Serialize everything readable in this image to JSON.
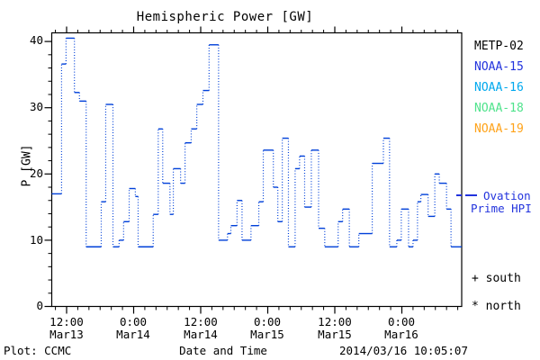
{
  "title": "Hemispheric Power [GW]",
  "colors": {
    "frame": "#000000",
    "hpi_line": "#0040d9",
    "ovation_label": "#2233dd"
  },
  "axes": {
    "y": {
      "label": "P [GW]",
      "tick_labels": [
        "40",
        "30",
        "20",
        "10",
        "0"
      ],
      "tick_values": [
        40,
        30,
        20,
        10,
        0
      ],
      "minor_step": 2,
      "range": [
        0,
        41.3
      ]
    },
    "x": {
      "label": "Date and Time",
      "ticks": [
        {
          "time": "12:00",
          "date": "Mar13",
          "hour": 12
        },
        {
          "time": "0:00",
          "date": "Mar14",
          "hour": 24
        },
        {
          "time": "12:00",
          "date": "Mar14",
          "hour": 36
        },
        {
          "time": "0:00",
          "date": "Mar15",
          "hour": 48
        },
        {
          "time": "12:00",
          "date": "Mar15",
          "hour": 60
        },
        {
          "time": "0:00",
          "date": "Mar16",
          "hour": 72
        }
      ],
      "minor_step_hours": 2,
      "range_hours": [
        9.26,
        82.7
      ]
    }
  },
  "legend": {
    "satellites": [
      {
        "label": "METP-02",
        "color": "#000000"
      },
      {
        "label": "NOAA-15",
        "color": "#2233dd"
      },
      {
        "label": "NOAA-16",
        "color": "#00a8ee"
      },
      {
        "label": "NOAA-18",
        "color": "#4fe38c"
      },
      {
        "label": "NOAA-19",
        "color": "#ffa31a"
      }
    ],
    "ovation_line1": "Ovation",
    "ovation_line2": "Prime HPI",
    "south": "+ south",
    "north": "* north"
  },
  "footer": {
    "left": "Plot: CCMC",
    "right": "2014/03/16 10:05:07"
  },
  "chart_data": {
    "type": "line",
    "title": "Hemispheric Power [GW]",
    "xlabel": "Date and Time",
    "ylabel": "P [GW]",
    "ylim": [
      0,
      41.3
    ],
    "x_unit": "hours since 2014-03-13 00:00 UT",
    "xlim_hours": [
      9.26,
      82.7
    ],
    "grid": false,
    "legend_position": "right-outside",
    "series": [
      {
        "name": "Ovation Prime HPI",
        "color": "#0040d9",
        "style": "stepped; horizontal segments solid, vertical connectors dotted",
        "end_hour": 82.7,
        "steps_hour_value": [
          [
            9.3,
            17.0
          ],
          [
            11.1,
            36.6
          ],
          [
            11.9,
            40.5
          ],
          [
            13.4,
            32.3
          ],
          [
            14.3,
            31.0
          ],
          [
            15.5,
            9.0
          ],
          [
            18.2,
            15.8
          ],
          [
            19.0,
            30.5
          ],
          [
            20.3,
            9.0
          ],
          [
            21.4,
            10.0
          ],
          [
            22.2,
            12.8
          ],
          [
            23.2,
            17.8
          ],
          [
            24.3,
            16.6
          ],
          [
            24.8,
            9.0
          ],
          [
            27.5,
            13.9
          ],
          [
            28.4,
            26.8
          ],
          [
            29.2,
            18.6
          ],
          [
            30.5,
            13.9
          ],
          [
            31.1,
            20.8
          ],
          [
            32.4,
            18.6
          ],
          [
            33.2,
            24.7
          ],
          [
            34.3,
            26.8
          ],
          [
            35.3,
            30.5
          ],
          [
            36.4,
            32.6
          ],
          [
            37.5,
            39.5
          ],
          [
            39.2,
            10.0
          ],
          [
            40.8,
            11.0
          ],
          [
            41.4,
            12.2
          ],
          [
            42.5,
            16.0
          ],
          [
            43.4,
            10.0
          ],
          [
            45.0,
            12.2
          ],
          [
            46.4,
            15.8
          ],
          [
            47.2,
            23.6
          ],
          [
            49.0,
            18.0
          ],
          [
            49.8,
            12.8
          ],
          [
            50.6,
            25.4
          ],
          [
            51.7,
            9.0
          ],
          [
            52.9,
            20.8
          ],
          [
            53.7,
            22.7
          ],
          [
            54.6,
            15.0
          ],
          [
            55.8,
            23.6
          ],
          [
            57.1,
            11.8
          ],
          [
            58.2,
            9.0
          ],
          [
            60.6,
            12.8
          ],
          [
            61.4,
            14.7
          ],
          [
            62.6,
            9.0
          ],
          [
            64.3,
            11.0
          ],
          [
            66.7,
            21.6
          ],
          [
            68.7,
            25.4
          ],
          [
            69.8,
            9.0
          ],
          [
            71.1,
            10.0
          ],
          [
            71.9,
            14.7
          ],
          [
            73.2,
            9.0
          ],
          [
            74.0,
            10.0
          ],
          [
            74.8,
            15.8
          ],
          [
            75.4,
            16.9
          ],
          [
            76.7,
            13.6
          ],
          [
            77.9,
            20.0
          ],
          [
            78.7,
            18.6
          ],
          [
            80.0,
            14.7
          ],
          [
            80.8,
            9.0
          ]
        ]
      }
    ]
  }
}
